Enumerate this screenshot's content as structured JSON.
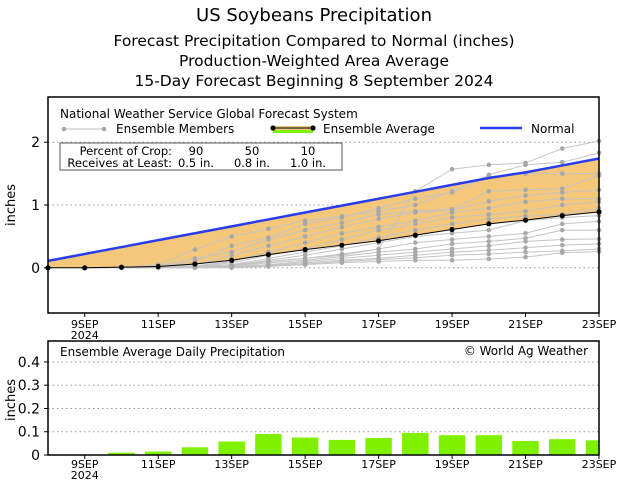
{
  "titles": {
    "main": "US Soybeans Precipitation",
    "line2": "Forecast Precipitation Compared to Normal (inches)",
    "line3": "Production-Weighted Area Average",
    "line4": "15-Day Forecast Beginning 8 September 2024"
  },
  "colors": {
    "normal": "#2a3cf0",
    "fill": "#f5c77a",
    "member": "#a8a8a8",
    "bar": "#7ff000",
    "avg": "#000000"
  },
  "chart_data": [
    {
      "type": "line",
      "title": "National Weather Service Global Forecast System",
      "ylabel": "inches",
      "ylim": [
        -0.72,
        2.72
      ],
      "yticks": [
        0,
        1,
        2
      ],
      "grid": true,
      "x_days": [
        8,
        9,
        10,
        11,
        12,
        13,
        14,
        15,
        16,
        17,
        18,
        19,
        20,
        21,
        22,
        23
      ],
      "xtick_days": [
        9,
        11,
        13,
        15,
        17,
        19,
        21,
        23
      ],
      "xtick_labels": [
        "9SEP",
        "11SEP",
        "13SEP",
        "15SEP",
        "17SEP",
        "19SEP",
        "21SEP",
        "23SEP"
      ],
      "xtick_sublabel": "2024",
      "legend": {
        "members": "Ensemble Members",
        "average": "Ensemble Average",
        "normal": "Normal"
      },
      "crop_table": {
        "row1_label": "Percent of Crop:",
        "row1": [
          "90",
          "50",
          "10"
        ],
        "row2_label": "Receives at Least:",
        "row2": [
          "0.5 in.",
          "0.8 in.",
          "1.0 in."
        ]
      },
      "ensemble_average": [
        0,
        0,
        0.01,
        0.02,
        0.06,
        0.12,
        0.21,
        0.29,
        0.36,
        0.43,
        0.52,
        0.61,
        0.7,
        0.76,
        0.83,
        0.89
      ],
      "normal": [
        0.11,
        0.22,
        0.33,
        0.44,
        0.55,
        0.66,
        0.77,
        0.88,
        0.99,
        1.1,
        1.21,
        1.32,
        1.43,
        1.52,
        1.63,
        1.74
      ],
      "members": [
        [
          0,
          0,
          0,
          0.01,
          0.02,
          0.05,
          0.1,
          0.15,
          0.2,
          0.3,
          1.22,
          1.57,
          1.64,
          1.67,
          1.9,
          2.02
        ],
        [
          0,
          0,
          0,
          0.02,
          0.1,
          0.35,
          0.48,
          0.7,
          0.8,
          0.95,
          1.1,
          1.2,
          1.48,
          1.64,
          1.68,
          1.83
        ],
        [
          0,
          0,
          0,
          0.05,
          0.29,
          0.5,
          0.62,
          0.75,
          0.82,
          0.9,
          1.0,
          1.22,
          1.45,
          1.5,
          1.5,
          1.5
        ],
        [
          0,
          0,
          0.01,
          0.03,
          0.15,
          0.25,
          0.45,
          0.6,
          0.72,
          0.85,
          0.9,
          0.93,
          1.22,
          1.24,
          1.26,
          1.47
        ],
        [
          0,
          0,
          0,
          0.01,
          0.05,
          0.2,
          0.35,
          0.5,
          0.65,
          0.78,
          0.88,
          0.92,
          1.06,
          1.15,
          1.2,
          1.24
        ],
        [
          0,
          0,
          0,
          0.01,
          0.03,
          0.1,
          0.25,
          0.4,
          0.55,
          0.65,
          0.75,
          0.88,
          0.95,
          1.05,
          1.1,
          1.1
        ],
        [
          0,
          0,
          0,
          0.01,
          0.02,
          0.08,
          0.2,
          0.3,
          0.45,
          0.6,
          0.7,
          0.8,
          0.85,
          0.9,
          1.0,
          1.05
        ],
        [
          0,
          0,
          0,
          0,
          0.02,
          0.05,
          0.15,
          0.25,
          0.35,
          0.48,
          0.6,
          0.7,
          0.78,
          0.82,
          0.85,
          0.95
        ],
        [
          0,
          0,
          0,
          0,
          0.01,
          0.04,
          0.12,
          0.2,
          0.3,
          0.4,
          0.5,
          0.55,
          0.6,
          0.75,
          0.8,
          0.83
        ],
        [
          0,
          0,
          0,
          0,
          0.01,
          0.03,
          0.1,
          0.15,
          0.22,
          0.3,
          0.4,
          0.45,
          0.5,
          0.55,
          0.7,
          0.74
        ],
        [
          0,
          0,
          0,
          0,
          0.01,
          0.02,
          0.08,
          0.12,
          0.18,
          0.25,
          0.3,
          0.38,
          0.42,
          0.47,
          0.6,
          0.6
        ],
        [
          0,
          0,
          0,
          0,
          0,
          0.02,
          0.05,
          0.1,
          0.15,
          0.2,
          0.25,
          0.3,
          0.35,
          0.42,
          0.45,
          0.46
        ],
        [
          0,
          0,
          0,
          0,
          0,
          0.01,
          0.04,
          0.08,
          0.12,
          0.15,
          0.2,
          0.25,
          0.28,
          0.32,
          0.36,
          0.38
        ],
        [
          0,
          0,
          0,
          0,
          0,
          0.01,
          0.03,
          0.06,
          0.1,
          0.13,
          0.16,
          0.2,
          0.22,
          0.25,
          0.27,
          0.3
        ],
        [
          0,
          0,
          0,
          0,
          0,
          0,
          0.02,
          0.05,
          0.08,
          0.1,
          0.12,
          0.12,
          0.14,
          0.17,
          0.24,
          0.26
        ]
      ]
    },
    {
      "type": "bar",
      "title": "Ensemble Average Daily Precipitation",
      "annotation": "© World Ag Weather",
      "ylabel": "inches",
      "ylim": [
        0,
        0.49
      ],
      "yticks": [
        0,
        0.1,
        0.2,
        0.3,
        0.4
      ],
      "ytick_labels": [
        "0",
        "0.1",
        "0.2",
        "0.3",
        "0.4"
      ],
      "grid": true,
      "x_days": [
        9,
        10,
        11,
        12,
        13,
        14,
        15,
        16,
        17,
        18,
        19,
        20,
        21,
        22,
        23
      ],
      "values": [
        0.002,
        0.01,
        0.015,
        0.033,
        0.058,
        0.09,
        0.075,
        0.065,
        0.073,
        0.095,
        0.085,
        0.085,
        0.06,
        0.068,
        0.063
      ],
      "xtick_labels": [
        "9SEP",
        "11SEP",
        "13SEP",
        "15SEP",
        "17SEP",
        "19SEP",
        "21SEP",
        "23SEP"
      ],
      "xtick_sublabel": "2024"
    }
  ]
}
